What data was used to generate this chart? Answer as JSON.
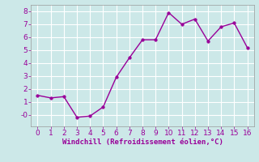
{
  "x": [
    0,
    1,
    2,
    3,
    4,
    5,
    6,
    7,
    8,
    9,
    10,
    11,
    12,
    13,
    14,
    15,
    16
  ],
  "y": [
    1.5,
    1.3,
    1.4,
    -0.2,
    -0.1,
    0.6,
    2.9,
    4.4,
    5.8,
    5.8,
    7.9,
    7.0,
    7.4,
    5.7,
    6.8,
    7.1,
    5.2
  ],
  "line_color": "#990099",
  "marker": "o",
  "marker_size": 2.5,
  "linewidth": 1.0,
  "xlabel": "Windchill (Refroidissement éolien,°C)",
  "xlabel_fontsize": 6.5,
  "ylabel": "",
  "title": "",
  "xlim": [
    -0.5,
    16.5
  ],
  "ylim": [
    -0.9,
    8.5
  ],
  "xticks": [
    0,
    1,
    2,
    3,
    4,
    5,
    6,
    7,
    8,
    9,
    10,
    11,
    12,
    13,
    14,
    15,
    16
  ],
  "yticks": [
    0,
    1,
    2,
    3,
    4,
    5,
    6,
    7,
    8
  ],
  "ytick_labels": [
    "-0",
    "1",
    "2",
    "3",
    "4",
    "5",
    "6",
    "7",
    "8"
  ],
  "background_color": "#cce8e8",
  "grid_color": "#b0d0d0",
  "tick_fontsize": 6.5,
  "xlabel_color": "#990099",
  "tick_color": "#990099",
  "spine_color": "#999999"
}
